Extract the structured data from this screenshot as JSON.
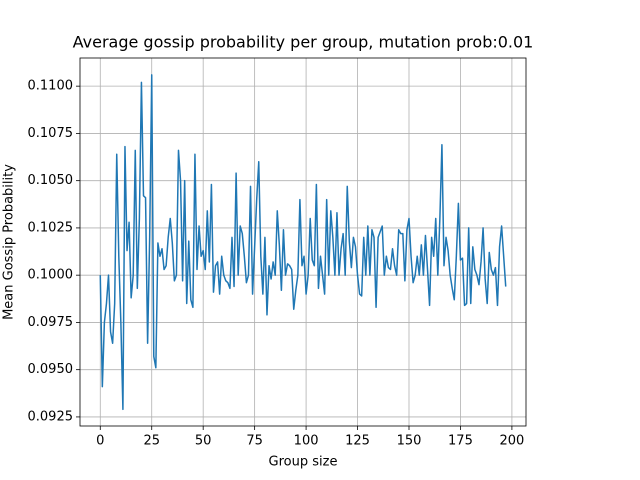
{
  "chart_data": {
    "type": "line",
    "title": "Average gossip probability per group, mutation prob:0.01",
    "x_label": "Group size",
    "y_label": "Mean Gossip Probability",
    "x": [
      0,
      1,
      2,
      3,
      4,
      5,
      6,
      7,
      8,
      9,
      10,
      11,
      12,
      13,
      14,
      15,
      16,
      17,
      18,
      19,
      20,
      21,
      22,
      23,
      24,
      25,
      26,
      27,
      28,
      29,
      30,
      31,
      32,
      33,
      34,
      35,
      36,
      37,
      38,
      39,
      40,
      41,
      42,
      43,
      44,
      45,
      46,
      47,
      48,
      49,
      50,
      51,
      52,
      53,
      54,
      55,
      56,
      57,
      58,
      59,
      60,
      61,
      62,
      63,
      64,
      65,
      66,
      67,
      68,
      69,
      70,
      71,
      72,
      73,
      74,
      75,
      76,
      77,
      78,
      79,
      80,
      81,
      82,
      83,
      84,
      85,
      86,
      87,
      88,
      89,
      90,
      91,
      92,
      93,
      94,
      95,
      96,
      97,
      98,
      99,
      100,
      101,
      102,
      103,
      104,
      105,
      106,
      107,
      108,
      109,
      110,
      111,
      112,
      113,
      114,
      115,
      116,
      117,
      118,
      119,
      120,
      121,
      122,
      123,
      124,
      125,
      126,
      127,
      128,
      129,
      130,
      131,
      132,
      133,
      134,
      135,
      136,
      137,
      138,
      139,
      140,
      141,
      142,
      143,
      144,
      145,
      146,
      147,
      148,
      149,
      150,
      151,
      152,
      153,
      154,
      155,
      156,
      157,
      158,
      159,
      160,
      161,
      162,
      163,
      164,
      165,
      166,
      167,
      168,
      169,
      170,
      171,
      172,
      173,
      174,
      175,
      176,
      177,
      178,
      179,
      180,
      181,
      182,
      183,
      184,
      185,
      186,
      187,
      188,
      189,
      190,
      191,
      192,
      193,
      194,
      195,
      196,
      197
    ],
    "series": [
      {
        "color": "#1f77b4",
        "values": [
          0.1,
          0.0941,
          0.0975,
          0.0985,
          0.1,
          0.097,
          0.0964,
          0.0985,
          0.1064,
          0.101,
          0.0975,
          0.0929,
          0.1068,
          0.1013,
          0.1028,
          0.0988,
          0.1,
          0.1066,
          0.0993,
          0.103,
          0.1102,
          0.1042,
          0.1041,
          0.0964,
          0.102,
          0.1106,
          0.0957,
          0.0951,
          0.1017,
          0.101,
          0.1014,
          0.1003,
          0.1005,
          0.102,
          0.103,
          0.1017,
          0.0997,
          0.1,
          0.1066,
          0.105,
          0.0997,
          0.105,
          0.0985,
          0.1018,
          0.0987,
          0.0983,
          0.1064,
          0.1003,
          0.1026,
          0.101,
          0.1013,
          0.1003,
          0.1034,
          0.1007,
          0.1048,
          0.0991,
          0.1005,
          0.1007,
          0.099,
          0.101,
          0.1,
          0.0997,
          0.0996,
          0.0993,
          0.102,
          0.0994,
          0.1054,
          0.1,
          0.1026,
          0.1022,
          0.101,
          0.0996,
          0.1,
          0.1047,
          0.099,
          0.1015,
          0.104,
          0.106,
          0.101,
          0.099,
          0.102,
          0.0979,
          0.1005,
          0.0998,
          0.1007,
          0.1,
          0.1034,
          0.1016,
          0.0992,
          0.1024,
          0.1,
          0.1006,
          0.1005,
          0.1003,
          0.0982,
          0.0992,
          0.1,
          0.104,
          0.1005,
          0.101,
          0.099,
          0.1,
          0.103,
          0.1008,
          0.1005,
          0.1048,
          0.0993,
          0.101,
          0.1,
          0.099,
          0.104,
          0.1,
          0.1034,
          0.102,
          0.1,
          0.1033,
          0.1,
          0.1014,
          0.1022,
          0.1,
          0.1047,
          0.1018,
          0.1004,
          0.102,
          0.1015,
          0.1,
          0.099,
          0.0989,
          0.102,
          0.1,
          0.1026,
          0.1,
          0.1024,
          0.102,
          0.0983,
          0.102,
          0.1023,
          0.1026,
          0.1,
          0.101,
          0.1004,
          0.1003,
          0.1014,
          0.1005,
          0.1,
          0.1024,
          0.1022,
          0.1022,
          0.0997,
          0.1024,
          0.103,
          0.101,
          0.0996,
          0.1,
          0.101,
          0.1,
          0.1016,
          0.1,
          0.1021,
          0.1003,
          0.0984,
          0.102,
          0.101,
          0.103,
          0.1,
          0.103,
          0.1069,
          0.1005,
          0.102,
          0.1013,
          0.1,
          0.0993,
          0.0987,
          0.101,
          0.1038,
          0.1008,
          0.1009,
          0.0984,
          0.0985,
          0.1025,
          0.0985,
          0.1015,
          0.1003,
          0.1,
          0.0995,
          0.1007,
          0.1025,
          0.0998,
          0.0985,
          0.1012,
          0.1003,
          0.1,
          0.1004,
          0.0984,
          0.1015,
          0.1026,
          0.101,
          0.0994
        ]
      }
    ],
    "xlim": [
      -9.85,
      206.85
    ],
    "ylim": [
      0.09202,
      0.11149
    ],
    "xticks": [
      0,
      25,
      50,
      75,
      100,
      125,
      150,
      175,
      200
    ],
    "yticks": [
      0.0925,
      {
        "value": 0.095,
        "label": "0.0950"
      },
      0.0975,
      {
        "value": 0.1,
        "label": "0.1000"
      },
      0.1025,
      {
        "value": 0.105,
        "label": "0.1050"
      },
      0.1075,
      {
        "value": 0.11,
        "label": "0.1100"
      }
    ],
    "grid": true
  }
}
